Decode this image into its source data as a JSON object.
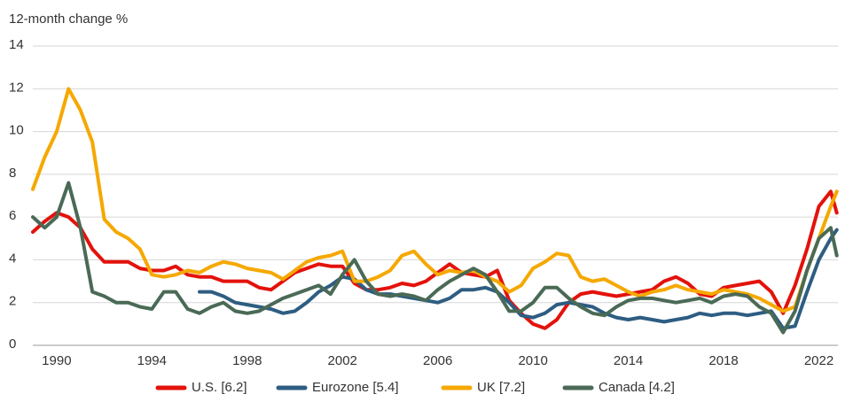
{
  "chart_data": {
    "type": "line",
    "y_label": "12-month change %",
    "xlim": [
      1989,
      2022.8
    ],
    "xticks": [
      1990,
      1994,
      1998,
      2002,
      2006,
      2010,
      2014,
      2018,
      2022
    ],
    "ylim": [
      0,
      14
    ],
    "yticks": [
      0,
      2,
      4,
      6,
      8,
      10,
      12,
      14
    ],
    "grid": true,
    "legend": "bottom",
    "x": [
      1989,
      1989.5,
      1990,
      1990.5,
      1991,
      1991.5,
      1992,
      1992.5,
      1993,
      1993.5,
      1994,
      1994.5,
      1995,
      1995.5,
      1996,
      1996.5,
      1997,
      1997.5,
      1998,
      1998.5,
      1999,
      1999.5,
      2000,
      2000.5,
      2001,
      2001.5,
      2002,
      2002.5,
      2003,
      2003.5,
      2004,
      2004.5,
      2005,
      2005.5,
      2006,
      2006.5,
      2007,
      2007.5,
      2008,
      2008.5,
      2009,
      2009.5,
      2010,
      2010.5,
      2011,
      2011.5,
      2012,
      2012.5,
      2013,
      2013.5,
      2014,
      2014.5,
      2015,
      2015.5,
      2016,
      2016.5,
      2017,
      2017.5,
      2018,
      2018.5,
      2019,
      2019.5,
      2020,
      2020.5,
      2021,
      2021.5,
      2022,
      2022.5,
      2022.75
    ],
    "series": [
      {
        "name": "U.S. [6.2]",
        "color": "#e3120b",
        "values": [
          5.3,
          5.8,
          6.2,
          6.0,
          5.5,
          4.5,
          3.9,
          3.9,
          3.9,
          3.6,
          3.5,
          3.5,
          3.7,
          3.3,
          3.2,
          3.2,
          3.0,
          3.0,
          3.0,
          2.7,
          2.6,
          3.0,
          3.4,
          3.6,
          3.8,
          3.7,
          3.7,
          2.9,
          2.6,
          2.6,
          2.7,
          2.9,
          2.8,
          3.0,
          3.4,
          3.8,
          3.4,
          3.3,
          3.2,
          3.5,
          2.1,
          1.5,
          1.0,
          0.8,
          1.2,
          2.0,
          2.4,
          2.5,
          2.4,
          2.3,
          2.4,
          2.5,
          2.6,
          3.0,
          3.2,
          2.9,
          2.4,
          2.3,
          2.7,
          2.8,
          2.9,
          3.0,
          2.5,
          1.5,
          2.8,
          4.5,
          6.5,
          7.2,
          6.2
        ]
      },
      {
        "name": "Eurozone [5.4]",
        "color": "#2e5d82",
        "values": [
          null,
          null,
          null,
          null,
          null,
          null,
          null,
          null,
          null,
          null,
          null,
          null,
          null,
          null,
          2.5,
          2.5,
          2.3,
          2.0,
          1.9,
          1.8,
          1.7,
          1.5,
          1.6,
          2.0,
          2.5,
          2.8,
          3.2,
          3.1,
          2.6,
          2.4,
          2.4,
          2.3,
          2.2,
          2.1,
          2.0,
          2.2,
          2.6,
          2.6,
          2.7,
          2.5,
          2.0,
          1.4,
          1.3,
          1.5,
          1.9,
          2.0,
          1.9,
          1.8,
          1.5,
          1.3,
          1.2,
          1.3,
          1.2,
          1.1,
          1.2,
          1.3,
          1.5,
          1.4,
          1.5,
          1.5,
          1.4,
          1.5,
          1.6,
          0.8,
          0.9,
          2.5,
          4.0,
          5.0,
          5.4
        ]
      },
      {
        "name": "UK [7.2]",
        "color": "#f5a800",
        "values": [
          7.3,
          8.8,
          10.0,
          12.0,
          11.0,
          9.5,
          5.9,
          5.3,
          5.0,
          4.5,
          3.3,
          3.2,
          3.3,
          3.5,
          3.4,
          3.7,
          3.9,
          3.8,
          3.6,
          3.5,
          3.4,
          3.1,
          3.5,
          3.9,
          4.1,
          4.2,
          4.4,
          3.0,
          3.0,
          3.2,
          3.5,
          4.2,
          4.4,
          3.8,
          3.3,
          3.5,
          3.4,
          3.5,
          3.2,
          3.0,
          2.5,
          2.8,
          3.6,
          3.9,
          4.3,
          4.2,
          3.2,
          3.0,
          3.1,
          2.8,
          2.5,
          2.3,
          2.5,
          2.6,
          2.8,
          2.6,
          2.5,
          2.4,
          2.6,
          2.5,
          2.4,
          2.2,
          1.9,
          1.6,
          1.8,
          3.5,
          5.0,
          6.5,
          7.2
        ]
      },
      {
        "name": "Canada [4.2]",
        "color": "#4a6a56",
        "values": [
          6.0,
          5.5,
          6.0,
          7.6,
          5.5,
          2.5,
          2.3,
          2.0,
          2.0,
          1.8,
          1.7,
          2.5,
          2.5,
          1.7,
          1.5,
          1.8,
          2.0,
          1.6,
          1.5,
          1.6,
          1.9,
          2.2,
          2.4,
          2.6,
          2.8,
          2.4,
          3.3,
          4.0,
          3.0,
          2.4,
          2.3,
          2.4,
          2.3,
          2.1,
          2.6,
          3.0,
          3.3,
          3.6,
          3.3,
          2.5,
          1.6,
          1.6,
          2.0,
          2.7,
          2.7,
          2.2,
          1.8,
          1.5,
          1.4,
          1.8,
          2.1,
          2.2,
          2.2,
          2.1,
          2.0,
          2.1,
          2.2,
          2.0,
          2.3,
          2.4,
          2.3,
          1.8,
          1.5,
          0.6,
          1.6,
          3.5,
          5.0,
          5.5,
          4.2
        ]
      }
    ]
  }
}
